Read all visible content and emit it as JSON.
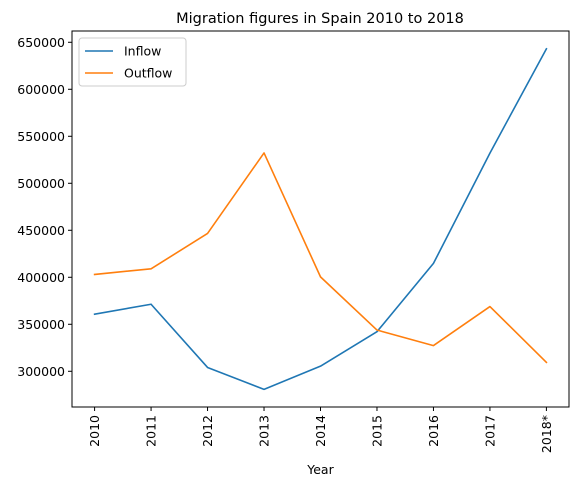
{
  "chart_data": {
    "type": "line",
    "title": "Migration figures in Spain 2010 to 2018",
    "xlabel": "Year",
    "ylabel": "",
    "categories": [
      "2010",
      "2011",
      "2012",
      "2013",
      "2014",
      "2015",
      "2016",
      "2017",
      "2018*"
    ],
    "series": [
      {
        "name": "Inflow",
        "color": "#1f77b4",
        "values": [
          360705,
          371335,
          304053,
          280772,
          305454,
          342114,
          414746,
          532132,
          643037
        ]
      },
      {
        "name": "Outflow",
        "color": "#ff7f0e",
        "values": [
          403013,
          409034,
          446606,
          532303,
          400430,
          343875,
          327325,
          368860,
          309526
        ]
      }
    ],
    "ylim": [
      262000,
      662000
    ],
    "yticks": [
      300000,
      350000,
      400000,
      450000,
      500000,
      550000,
      600000,
      650000
    ],
    "grid": false,
    "legend": "top-left"
  }
}
